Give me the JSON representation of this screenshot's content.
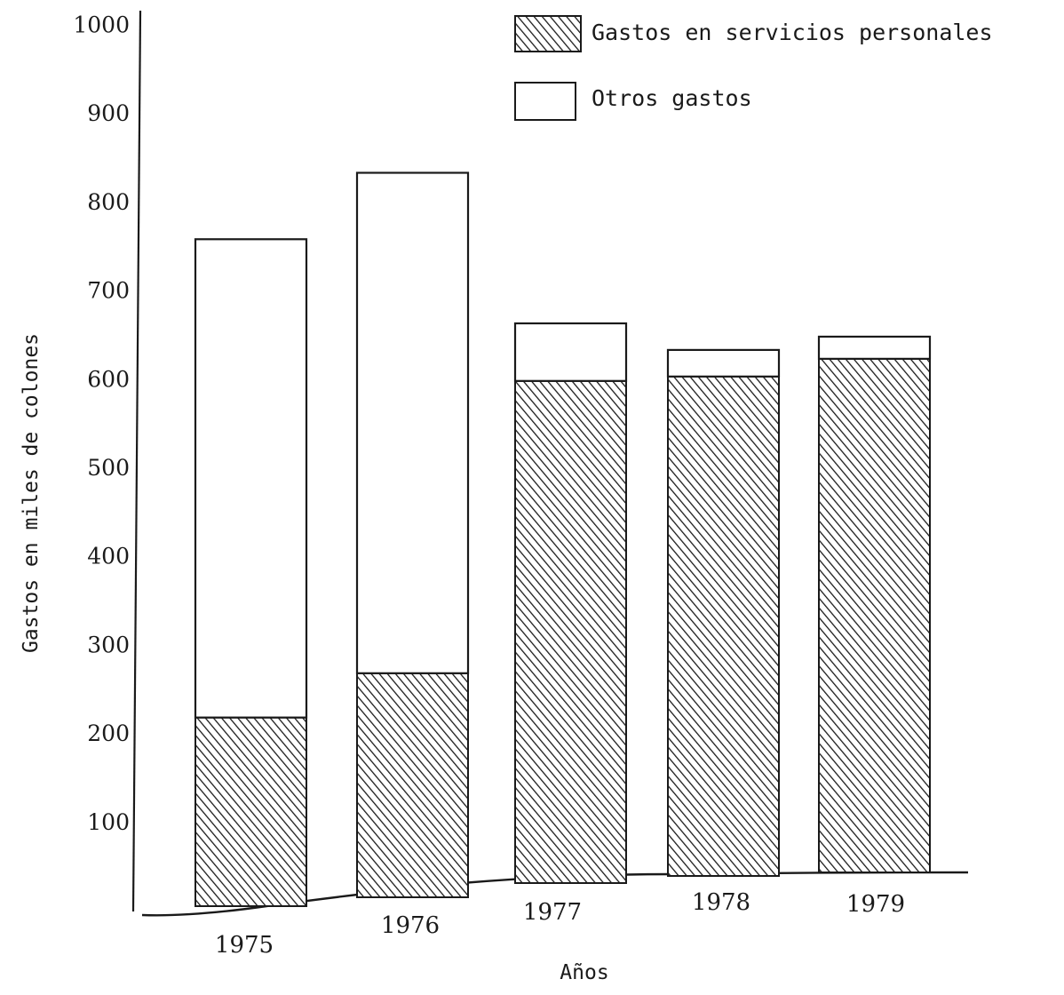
{
  "chart_data": {
    "type": "bar",
    "stacked": true,
    "categories": [
      "1975",
      "1976",
      "1977",
      "1978",
      "1979"
    ],
    "series": [
      {
        "name": "Gastos en servicios personales",
        "pattern": "hatched",
        "values": [
          220,
          270,
          600,
          605,
          625
        ]
      },
      {
        "name": "Otros gastos",
        "pattern": "empty",
        "values": [
          540,
          565,
          65,
          30,
          25
        ]
      }
    ],
    "xlabel": "Años",
    "ylabel": "Gastos en miles de colones",
    "yticks": [
      100,
      200,
      300,
      400,
      500,
      600,
      700,
      800,
      900,
      1000
    ],
    "ylim": [
      0,
      1000
    ],
    "legend_position": "top-right",
    "grid": false,
    "colors": {
      "ink": "#1a1a1a",
      "paper": "#ffffff"
    }
  }
}
